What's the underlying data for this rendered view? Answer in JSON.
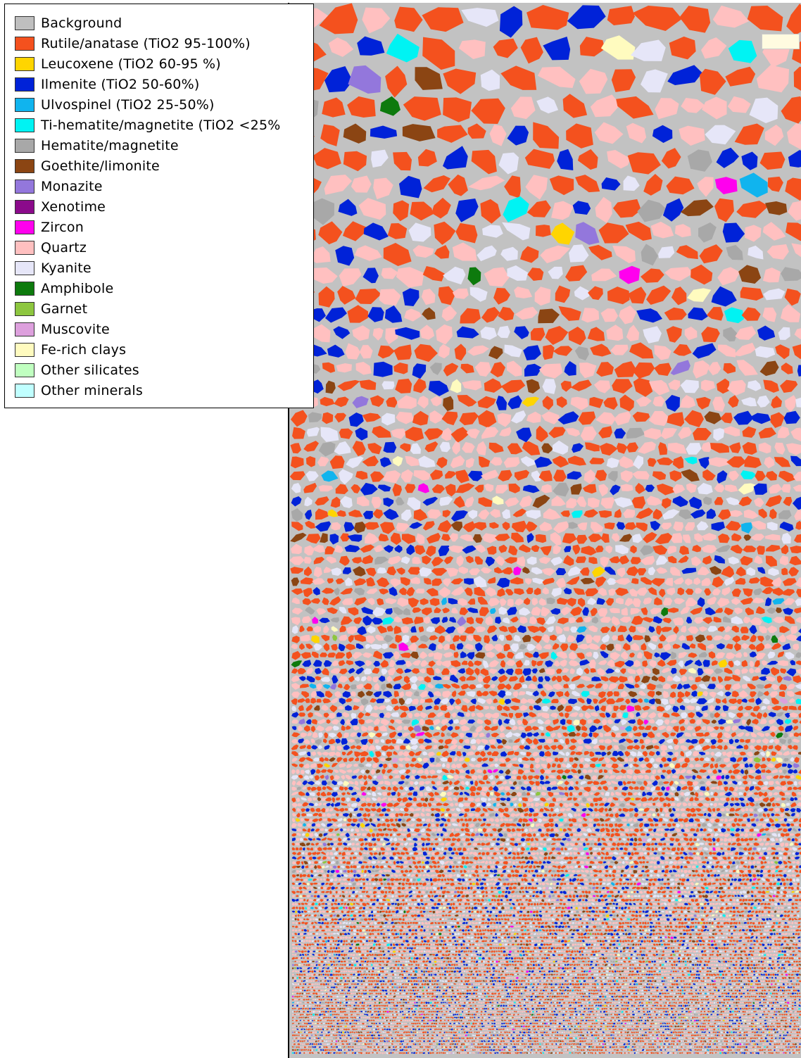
{
  "legend": {
    "items": [
      {
        "label": "Background",
        "color": "#bfbfbf"
      },
      {
        "label": "Rutile/anatase (TiO2 95-100%)",
        "color": "#f4511e"
      },
      {
        "label": "Leucoxene (TiO2 60-95 %)",
        "color": "#ffd500"
      },
      {
        "label": "Ilmenite (TiO2 50-60%)",
        "color": "#0022d8"
      },
      {
        "label": "Ulvospinel (TiO2 25-50%)",
        "color": "#10b4ee"
      },
      {
        "label": "Ti-hematite/magnetite (TiO2 <25%",
        "color": "#00f3f3"
      },
      {
        "label": "Hematite/magnetite",
        "color": "#a8a8a8"
      },
      {
        "label": "Goethite/limonite",
        "color": "#8b4513"
      },
      {
        "label": "Monazite",
        "color": "#9377dc"
      },
      {
        "label": "Xenotime",
        "color": "#8b0a8b"
      },
      {
        "label": "Zircon",
        "color": "#ff00ee"
      },
      {
        "label": "Quartz",
        "color": "#ffc0c0"
      },
      {
        "label": "Kyanite",
        "color": "#e6e6f8"
      },
      {
        "label": "Amphibole",
        "color": "#0d7a0d"
      },
      {
        "label": "Garnet",
        "color": "#8dc63f"
      },
      {
        "label": "Muscovite",
        "color": "#dda0dd"
      },
      {
        "label": "Fe-rich clays",
        "color": "#fffbbf"
      },
      {
        "label": "Other silicates",
        "color": "#c0ffc0"
      },
      {
        "label": "Other minerals",
        "color": "#c0ffff"
      }
    ]
  },
  "map": {
    "background_color": "#c2c2c2",
    "icon": "mineral-particle-map"
  }
}
